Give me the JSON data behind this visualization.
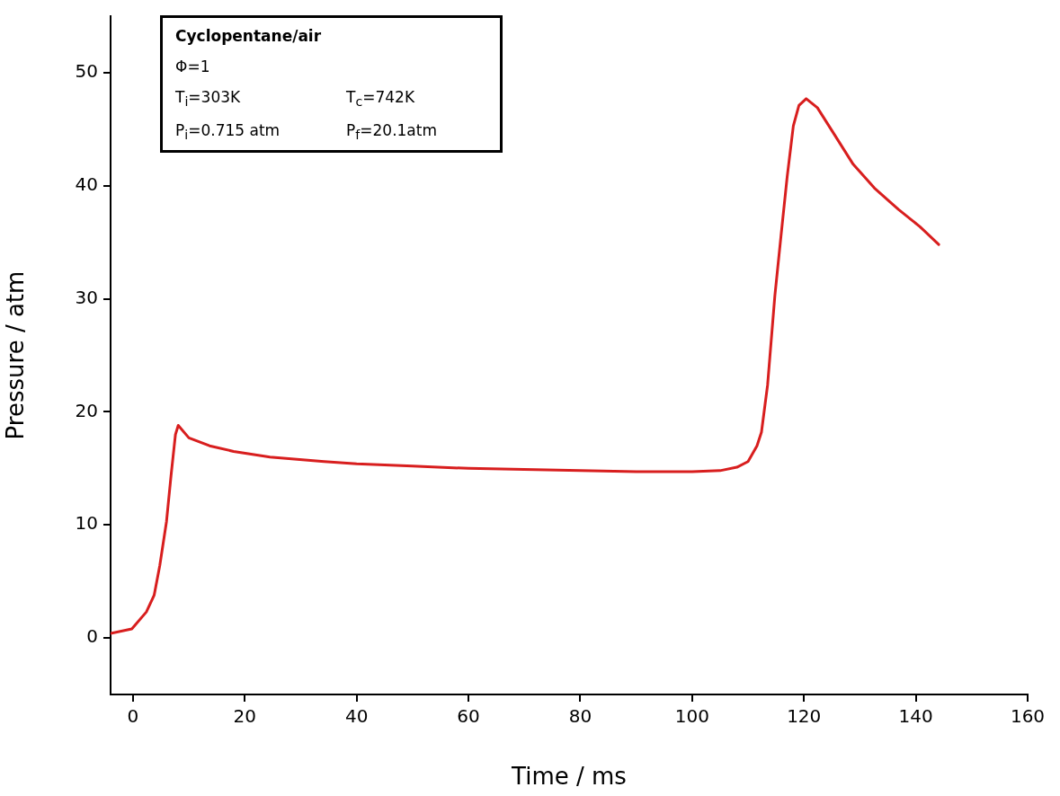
{
  "chart_data": {
    "type": "line",
    "xlabel": "Time / ms",
    "ylabel": "Pressure / atm",
    "annotations": [
      "Cyclopentane/air",
      "Φ=1",
      "T$_{i}$=303K",
      "T$_{c}$=742K",
      "P$_{i}$=0.715 atm",
      "P$_{f}$=20.1atm"
    ],
    "xlim": [
      -4,
      160
    ],
    "xticks": [
      0,
      20,
      40,
      60,
      80,
      100,
      120,
      140,
      160
    ],
    "ylim": [
      -5,
      55
    ],
    "yticks": [
      0,
      10,
      20,
      30,
      40,
      50
    ],
    "legend": false,
    "marker": "none",
    "line_style": "solid",
    "series": [
      {
        "color": "#d81e1e",
        "x": [
          -4,
          -0.2,
          2.4,
          3.8,
          4.8,
          6.0,
          6.8,
          7.6,
          8.1,
          10,
          13.7,
          18,
          24.5,
          34.2,
          40,
          50,
          60,
          70,
          80,
          90,
          100,
          105,
          108,
          110,
          111.6,
          112.4,
          113.5,
          114.8,
          115.9,
          117.0,
          118.1,
          119.1,
          120.4,
          122.4,
          125.1,
          128.8,
          132.6,
          136.9,
          140.7,
          144.1
        ],
        "values": [
          0.4,
          0.8,
          2.3,
          3.8,
          6.4,
          10.3,
          14.3,
          18,
          18.8,
          17.7,
          17.0,
          16.5,
          16.0,
          15.6,
          15.4,
          15.2,
          15.0,
          14.9,
          14.8,
          14.7,
          14.7,
          14.8,
          15.1,
          15.6,
          17,
          18.2,
          22.4,
          30.3,
          35.6,
          40.8,
          45.3,
          47.1,
          47.7,
          46.9,
          44.8,
          41.9,
          39.8,
          37.9,
          36.4,
          34.8
        ]
      }
    ]
  }
}
